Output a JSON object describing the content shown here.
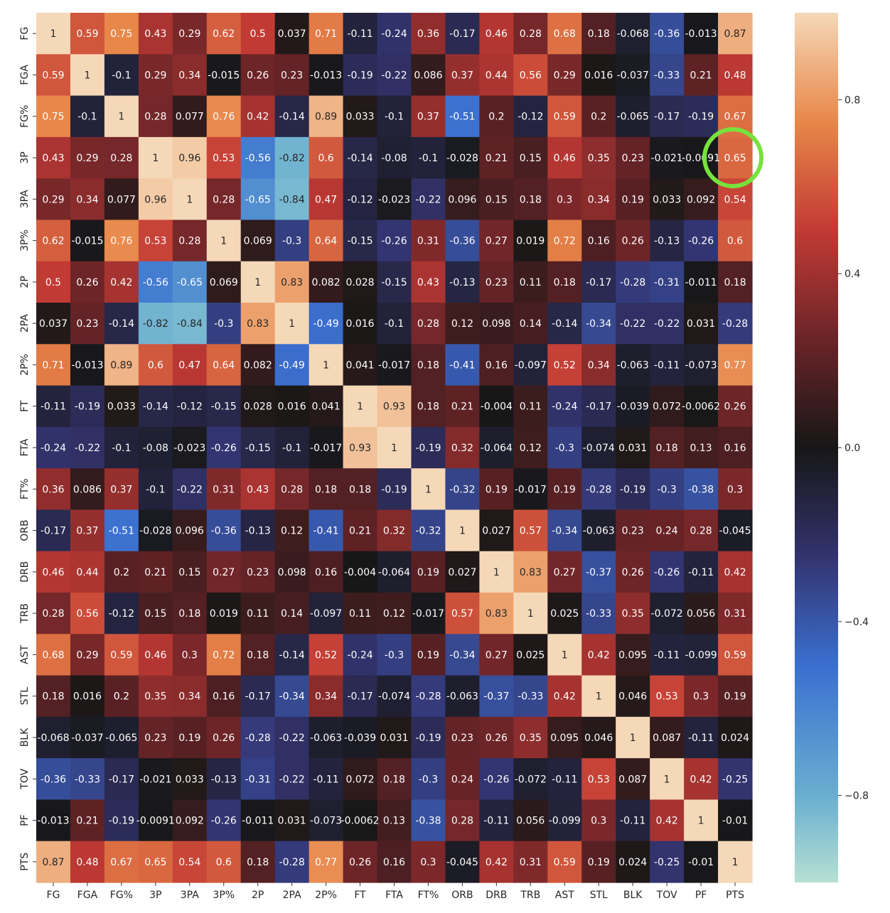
{
  "chart_data": {
    "type": "heatmap",
    "title": "",
    "xlabel": "",
    "ylabel": "",
    "labels": [
      "FG",
      "FGA",
      "FG%",
      "3P",
      "3PA",
      "3P%",
      "2P",
      "2PA",
      "2P%",
      "FT",
      "FTA",
      "FT%",
      "ORB",
      "DRB",
      "TRB",
      "AST",
      "STL",
      "BLK",
      "TOV",
      "PF",
      "PTS"
    ],
    "values": [
      [
        1,
        0.59,
        0.75,
        0.43,
        0.29,
        0.62,
        0.5,
        0.037,
        0.71,
        -0.11,
        -0.24,
        0.36,
        -0.17,
        0.46,
        0.28,
        0.68,
        0.18,
        -0.068,
        -0.36,
        -0.013,
        0.87
      ],
      [
        0.59,
        1,
        -0.1,
        0.29,
        0.34,
        -0.015,
        0.26,
        0.23,
        -0.013,
        -0.19,
        -0.22,
        0.086,
        0.37,
        0.44,
        0.56,
        0.29,
        0.016,
        -0.037,
        -0.33,
        0.21,
        0.48
      ],
      [
        0.75,
        -0.1,
        1,
        0.28,
        0.077,
        0.76,
        0.42,
        -0.14,
        0.89,
        0.033,
        -0.1,
        0.37,
        -0.51,
        0.2,
        -0.12,
        0.59,
        0.2,
        -0.065,
        -0.17,
        -0.19,
        0.67
      ],
      [
        0.43,
        0.29,
        0.28,
        1,
        0.96,
        0.53,
        -0.56,
        -0.82,
        0.6,
        -0.14,
        -0.08,
        -0.1,
        -0.028,
        0.21,
        0.15,
        0.46,
        0.35,
        0.23,
        -0.021,
        -0.0091,
        0.65
      ],
      [
        0.29,
        0.34,
        0.077,
        0.96,
        1,
        0.28,
        -0.65,
        -0.84,
        0.47,
        -0.12,
        -0.023,
        -0.22,
        0.096,
        0.15,
        0.18,
        0.3,
        0.34,
        0.19,
        0.033,
        0.092,
        0.54
      ],
      [
        0.62,
        -0.015,
        0.76,
        0.53,
        0.28,
        1,
        0.069,
        -0.3,
        0.64,
        -0.15,
        -0.26,
        0.31,
        -0.36,
        0.27,
        0.019,
        0.72,
        0.16,
        0.26,
        -0.13,
        -0.26,
        0.6
      ],
      [
        0.5,
        0.26,
        0.42,
        -0.56,
        -0.65,
        0.069,
        1,
        0.83,
        0.082,
        0.028,
        -0.15,
        0.43,
        -0.13,
        0.23,
        0.11,
        0.18,
        -0.17,
        -0.28,
        -0.31,
        -0.011,
        0.18
      ],
      [
        0.037,
        0.23,
        -0.14,
        -0.82,
        -0.84,
        -0.3,
        0.83,
        1,
        -0.49,
        0.016,
        -0.1,
        0.28,
        0.12,
        0.098,
        0.14,
        -0.14,
        -0.34,
        -0.22,
        -0.22,
        0.031,
        -0.28
      ],
      [
        0.71,
        -0.013,
        0.89,
        0.6,
        0.47,
        0.64,
        0.082,
        -0.49,
        1,
        0.041,
        -0.017,
        0.18,
        -0.41,
        0.16,
        -0.097,
        0.52,
        0.34,
        -0.063,
        -0.11,
        -0.073,
        0.77
      ],
      [
        -0.11,
        -0.19,
        0.033,
        -0.14,
        -0.12,
        -0.15,
        0.028,
        0.016,
        0.041,
        1,
        0.93,
        0.18,
        0.21,
        -0.004,
        0.11,
        -0.24,
        -0.17,
        -0.039,
        0.072,
        -0.0062,
        0.26
      ],
      [
        -0.24,
        -0.22,
        -0.1,
        -0.08,
        -0.023,
        -0.26,
        -0.15,
        -0.1,
        -0.017,
        0.93,
        1,
        -0.19,
        0.32,
        -0.064,
        0.12,
        -0.3,
        -0.074,
        0.031,
        0.18,
        0.13,
        0.16
      ],
      [
        0.36,
        0.086,
        0.37,
        -0.1,
        -0.22,
        0.31,
        0.43,
        0.28,
        0.18,
        0.18,
        -0.19,
        1,
        -0.32,
        0.19,
        -0.017,
        0.19,
        -0.28,
        -0.19,
        -0.3,
        -0.38,
        0.3
      ],
      [
        -0.17,
        0.37,
        -0.51,
        -0.028,
        0.096,
        -0.36,
        -0.13,
        0.12,
        -0.41,
        0.21,
        0.32,
        -0.32,
        1,
        0.027,
        0.57,
        -0.34,
        -0.063,
        0.23,
        0.24,
        0.28,
        -0.045
      ],
      [
        0.46,
        0.44,
        0.2,
        0.21,
        0.15,
        0.27,
        0.23,
        0.098,
        0.16,
        -0.004,
        -0.064,
        0.19,
        0.027,
        1,
        0.83,
        0.27,
        -0.37,
        0.26,
        -0.26,
        -0.11,
        0.42
      ],
      [
        0.28,
        0.56,
        -0.12,
        0.15,
        0.18,
        0.019,
        0.11,
        0.14,
        -0.097,
        0.11,
        0.12,
        -0.017,
        0.57,
        0.83,
        1,
        0.025,
        -0.33,
        0.35,
        -0.072,
        0.056,
        0.31
      ],
      [
        0.68,
        0.29,
        0.59,
        0.46,
        0.3,
        0.72,
        0.18,
        -0.14,
        0.52,
        -0.24,
        -0.3,
        0.19,
        -0.34,
        0.27,
        0.025,
        1,
        0.42,
        0.095,
        -0.11,
        -0.099,
        0.59
      ],
      [
        0.18,
        0.016,
        0.2,
        0.35,
        0.34,
        0.16,
        -0.17,
        -0.34,
        0.34,
        -0.17,
        -0.074,
        -0.28,
        -0.063,
        -0.37,
        -0.33,
        0.42,
        1,
        0.046,
        0.53,
        0.3,
        0.19
      ],
      [
        -0.068,
        -0.037,
        -0.065,
        0.23,
        0.19,
        0.26,
        -0.28,
        -0.22,
        -0.063,
        -0.039,
        0.031,
        -0.19,
        0.23,
        0.26,
        0.35,
        0.095,
        0.046,
        1,
        0.087,
        -0.11,
        0.024
      ],
      [
        -0.36,
        -0.33,
        -0.17,
        -0.021,
        0.033,
        -0.13,
        -0.31,
        -0.22,
        -0.11,
        0.072,
        0.18,
        -0.3,
        0.24,
        -0.26,
        -0.072,
        -0.11,
        0.53,
        0.087,
        1,
        0.42,
        -0.25
      ],
      [
        -0.013,
        0.21,
        -0.19,
        -0.0091,
        0.092,
        -0.26,
        -0.011,
        0.031,
        -0.073,
        -0.0062,
        0.13,
        -0.38,
        0.28,
        -0.11,
        0.056,
        -0.099,
        0.3,
        -0.11,
        0.42,
        1,
        -0.01
      ],
      [
        0.87,
        0.48,
        0.67,
        0.65,
        0.54,
        0.6,
        0.18,
        -0.28,
        0.77,
        0.26,
        0.16,
        0.3,
        -0.045,
        0.42,
        0.31,
        0.59,
        0.19,
        0.024,
        -0.25,
        -0.01,
        1
      ]
    ],
    "colorbar": {
      "range": [
        -1,
        1
      ],
      "ticks": [
        "0.8",
        "0.4",
        "0.0",
        "−0.4",
        "−0.8"
      ],
      "tick_values": [
        0.8,
        0.4,
        0.0,
        -0.4,
        -0.8
      ]
    },
    "colormap": {
      "stops": [
        {
          "v": -1.0,
          "color": "#b6e0d3"
        },
        {
          "v": -0.8,
          "color": "#6aaed0"
        },
        {
          "v": -0.5,
          "color": "#3a6fd0"
        },
        {
          "v": -0.25,
          "color": "#33336e"
        },
        {
          "v": 0.0,
          "color": "#171717"
        },
        {
          "v": 0.25,
          "color": "#6b2428"
        },
        {
          "v": 0.5,
          "color": "#c23a34"
        },
        {
          "v": 0.75,
          "color": "#e8874a"
        },
        {
          "v": 1.0,
          "color": "#f5d8b8"
        }
      ]
    },
    "annotation": {
      "type": "circle",
      "row": 3,
      "col": 20,
      "color": "#77e23c"
    },
    "grid": false,
    "legend": "none"
  }
}
